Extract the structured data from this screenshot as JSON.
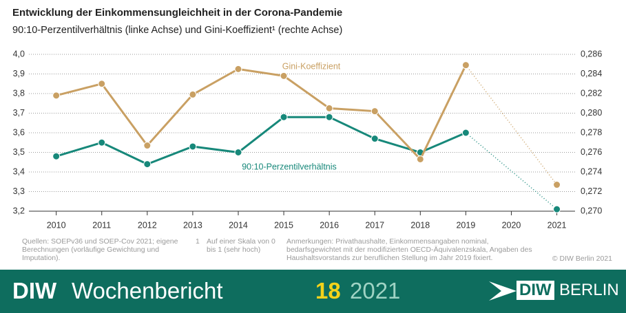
{
  "header": {
    "title": "Entwicklung der Einkommensungleichheit in der Corona-Pandemie",
    "subtitle": "90:10-Perzentilverhältnis (linke Achse) und Gini-Koeffizient¹ (rechte Achse)"
  },
  "chart_data": {
    "type": "line",
    "x": [
      2010,
      2011,
      2012,
      2013,
      2014,
      2015,
      2016,
      2017,
      2018,
      2019,
      2020,
      2021
    ],
    "xlim": [
      2009.4,
      2021.4
    ],
    "xticks": [
      2010,
      2011,
      2012,
      2013,
      2014,
      2015,
      2016,
      2017,
      2018,
      2019,
      2020,
      2021
    ],
    "ylim": [
      3.2,
      4.0
    ],
    "yticks": [
      {
        "value": 3.2,
        "label": "3,2"
      },
      {
        "value": 3.3,
        "label": "3,3"
      },
      {
        "value": 3.4,
        "label": "3,4"
      },
      {
        "value": 3.5,
        "label": "3,5"
      },
      {
        "value": 3.6,
        "label": "3,6"
      },
      {
        "value": 3.7,
        "label": "3,7"
      },
      {
        "value": 3.8,
        "label": "3,8"
      },
      {
        "value": 3.9,
        "label": "3,9"
      },
      {
        "value": 4.0,
        "label": "4,0"
      }
    ],
    "y2lim": [
      0.27,
      0.286
    ],
    "y2ticks": [
      {
        "value": 0.27,
        "label": "0,270"
      },
      {
        "value": 0.272,
        "label": "0,272"
      },
      {
        "value": 0.274,
        "label": "0,274"
      },
      {
        "value": 0.276,
        "label": "0,276"
      },
      {
        "value": 0.278,
        "label": "0,278"
      },
      {
        "value": 0.28,
        "label": "0,280"
      },
      {
        "value": 0.282,
        "label": "0,282"
      },
      {
        "value": 0.284,
        "label": "0,284"
      },
      {
        "value": 0.286,
        "label": "0,286"
      }
    ],
    "grid": true,
    "series": [
      {
        "name": "90:10-Perzentilverhältnis",
        "color": "#17887a",
        "values": [
          3.48,
          3.55,
          3.44,
          3.53,
          3.5,
          3.68,
          3.68,
          3.57,
          3.5,
          3.6,
          null,
          3.21
        ]
      },
      {
        "name": "Gini-Koeffizient",
        "color": "#c9a063",
        "axis": "y2",
        "values": [
          0.2818,
          0.283,
          0.2767,
          0.2819,
          0.2845,
          0.2838,
          0.2805,
          0.2802,
          0.2753,
          0.2849,
          null,
          0.2727
        ]
      }
    ]
  },
  "footer": {
    "sources": "Quellen: SOEPv36 und SOEP-Cov 2021; eigene Berechnungen (vorläufige Gewichtung und Imputation).",
    "footnote_mark": "1",
    "footnote": "Auf einer Skala von 0 bis 1 (sehr hoch)",
    "notes": "Anmerkungen: Privathaushalte, Einkommensangaben nominal, bedarfsgewichtet mit der modifizierten OECD-Äquivalenzskala, Angaben des Haushaltsvorstands zur beruflichen Stellung im Jahr 2019 fixiert.",
    "copyright": "© DIW Berlin 2021"
  },
  "banner": {
    "brand": "DIW",
    "publication": "Wochenbericht",
    "issue": "18",
    "year": "2021",
    "logo_a": "DIW",
    "logo_b": "BERLIN"
  }
}
